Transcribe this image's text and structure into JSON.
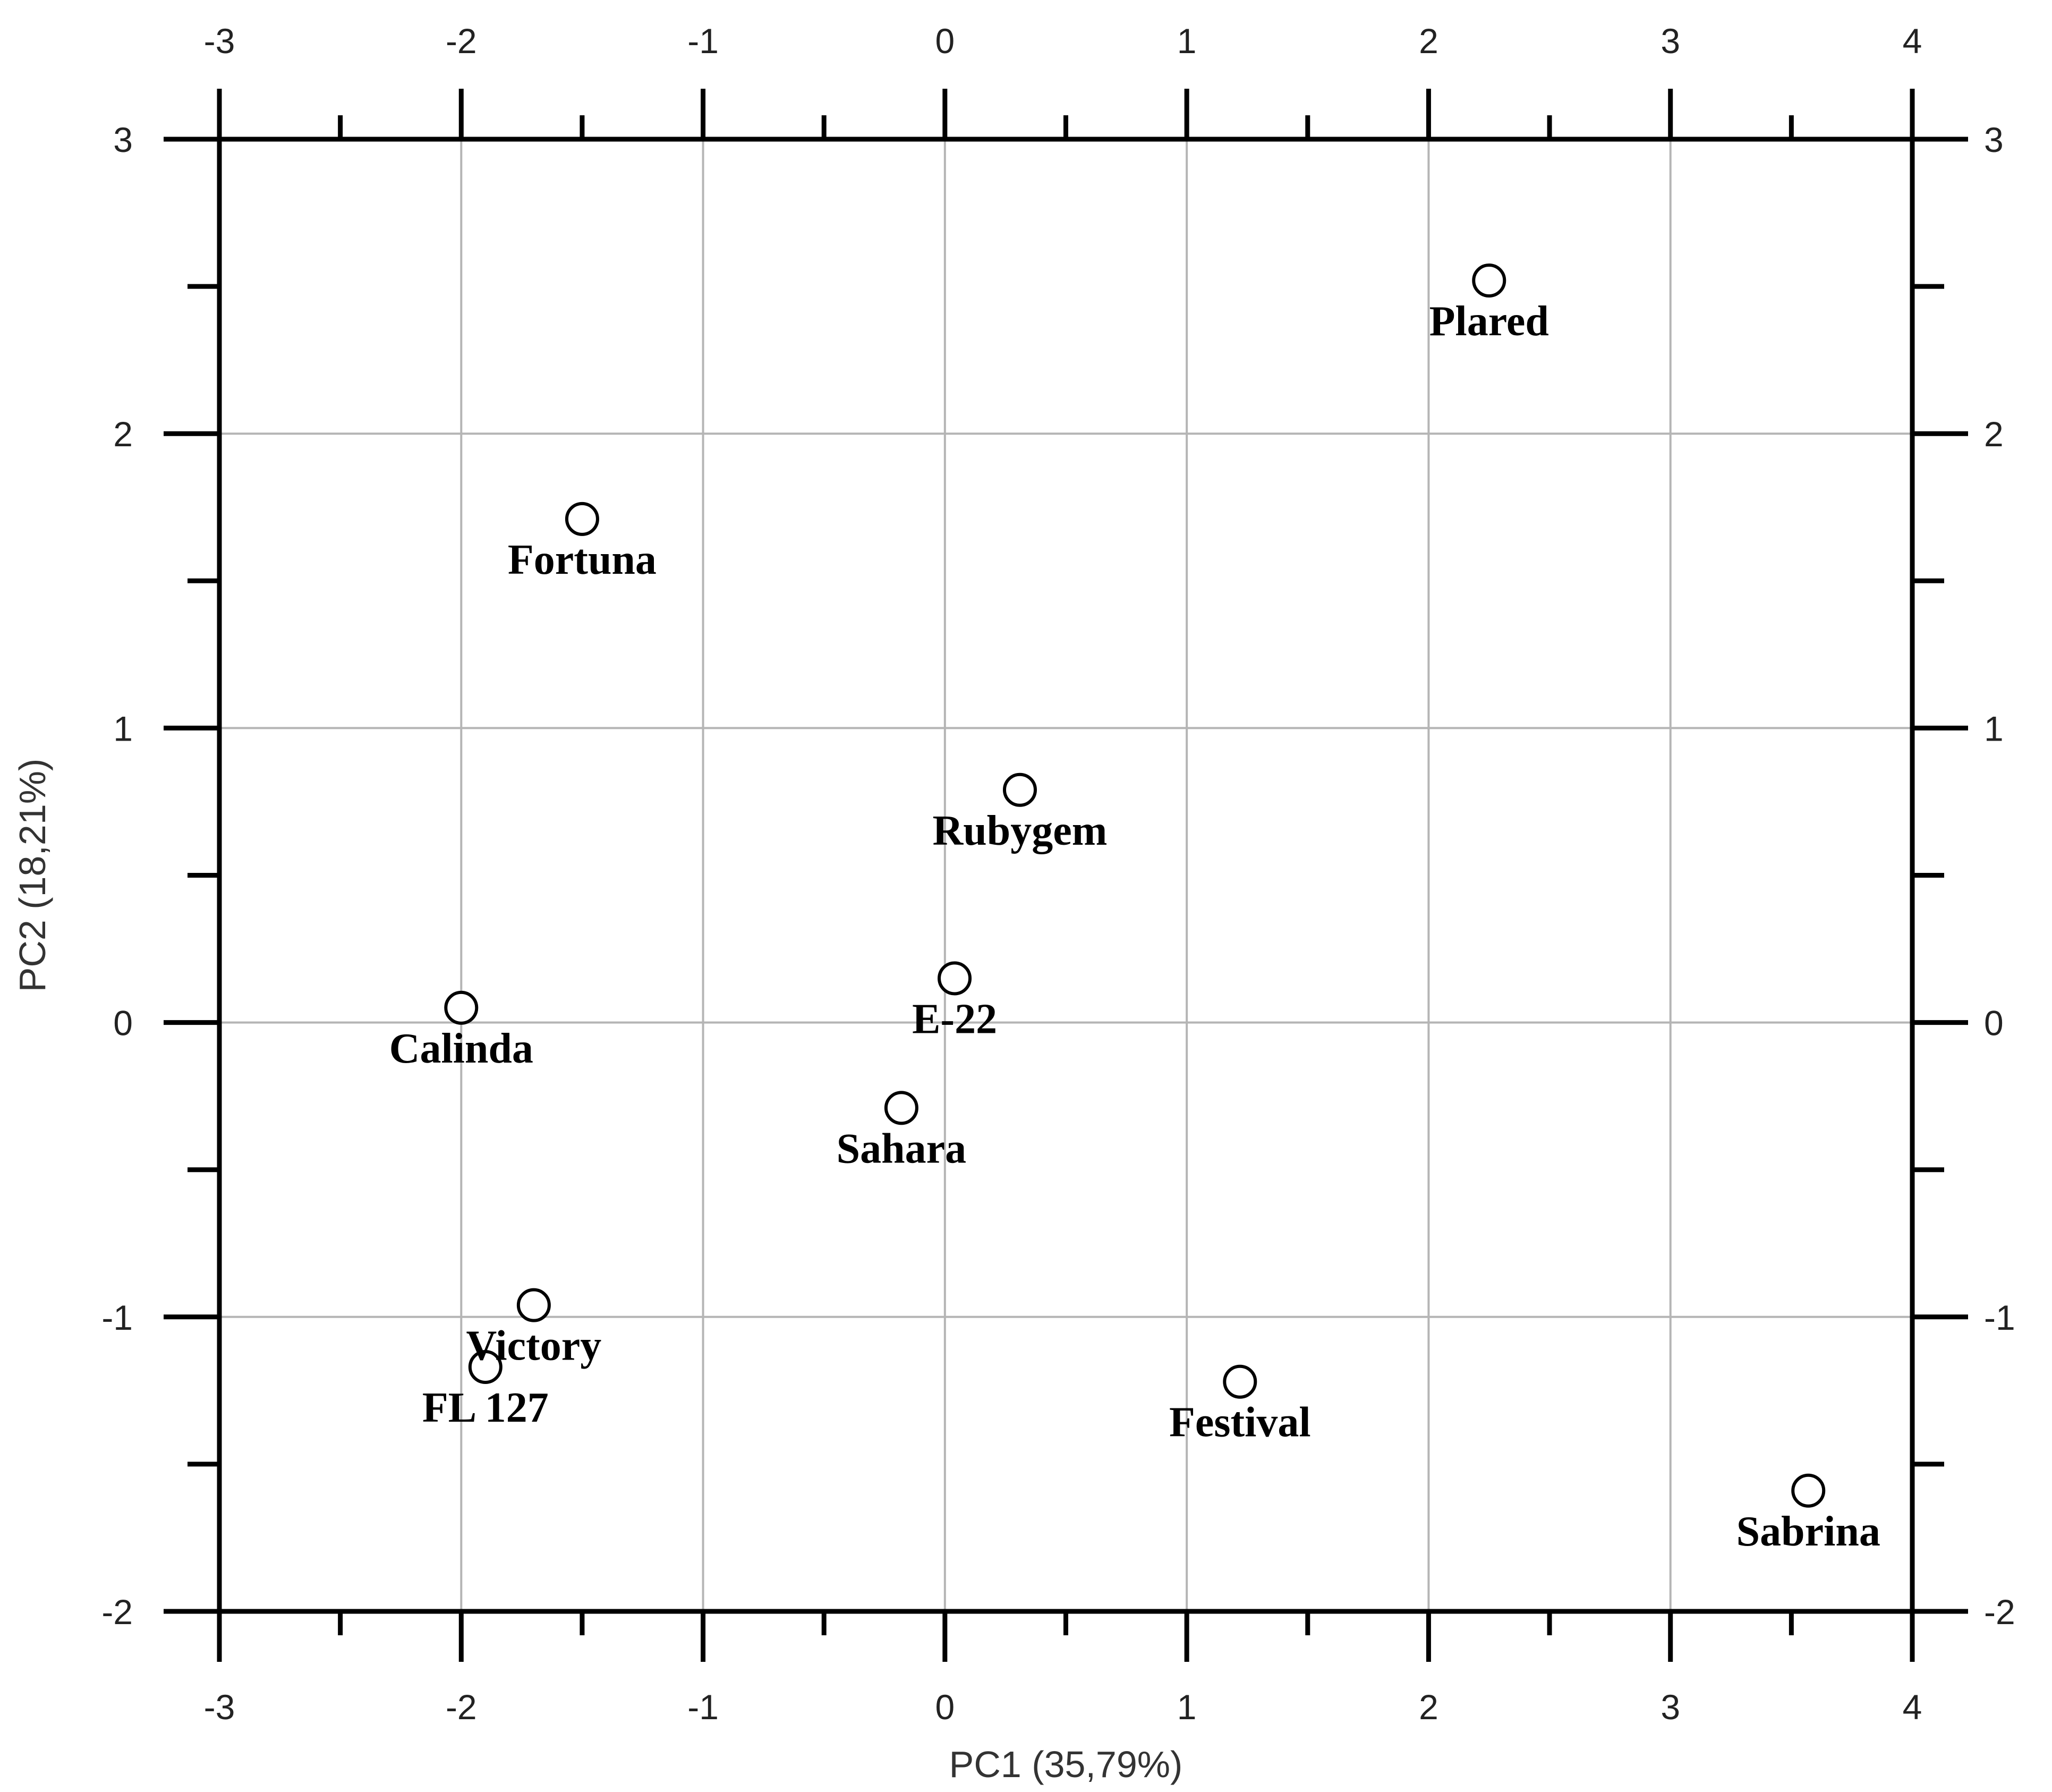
{
  "chart_data": {
    "type": "scatter",
    "xlabel": "PC1 (35,79%)",
    "ylabel": "PC2 (18,21%)",
    "xlim": [
      -3,
      4
    ],
    "ylim": [
      -2,
      3
    ],
    "x_ticks": [
      "-3",
      "-2",
      "-1",
      "0",
      "1",
      "2",
      "3",
      "4"
    ],
    "y_ticks": [
      "-2",
      "-1",
      "0",
      "1",
      "2",
      "3"
    ],
    "grid": true,
    "marker": "open-circle",
    "points": [
      {
        "label": "Plared",
        "x": 2.25,
        "y": 2.52
      },
      {
        "label": "Fortuna",
        "x": -1.5,
        "y": 1.71
      },
      {
        "label": "Rubygem",
        "x": 0.31,
        "y": 0.79
      },
      {
        "label": "E-22",
        "x": 0.04,
        "y": 0.15
      },
      {
        "label": "Calinda",
        "x": -2.0,
        "y": 0.05
      },
      {
        "label": "Sahara",
        "x": -0.18,
        "y": -0.29
      },
      {
        "label": "Victory",
        "x": -1.7,
        "y": -0.96
      },
      {
        "label": "FL 127",
        "x": -1.9,
        "y": -1.17
      },
      {
        "label": "Festival",
        "x": 1.22,
        "y": -1.22
      },
      {
        "label": "Sabrina",
        "x": 3.57,
        "y": -1.59
      }
    ]
  }
}
